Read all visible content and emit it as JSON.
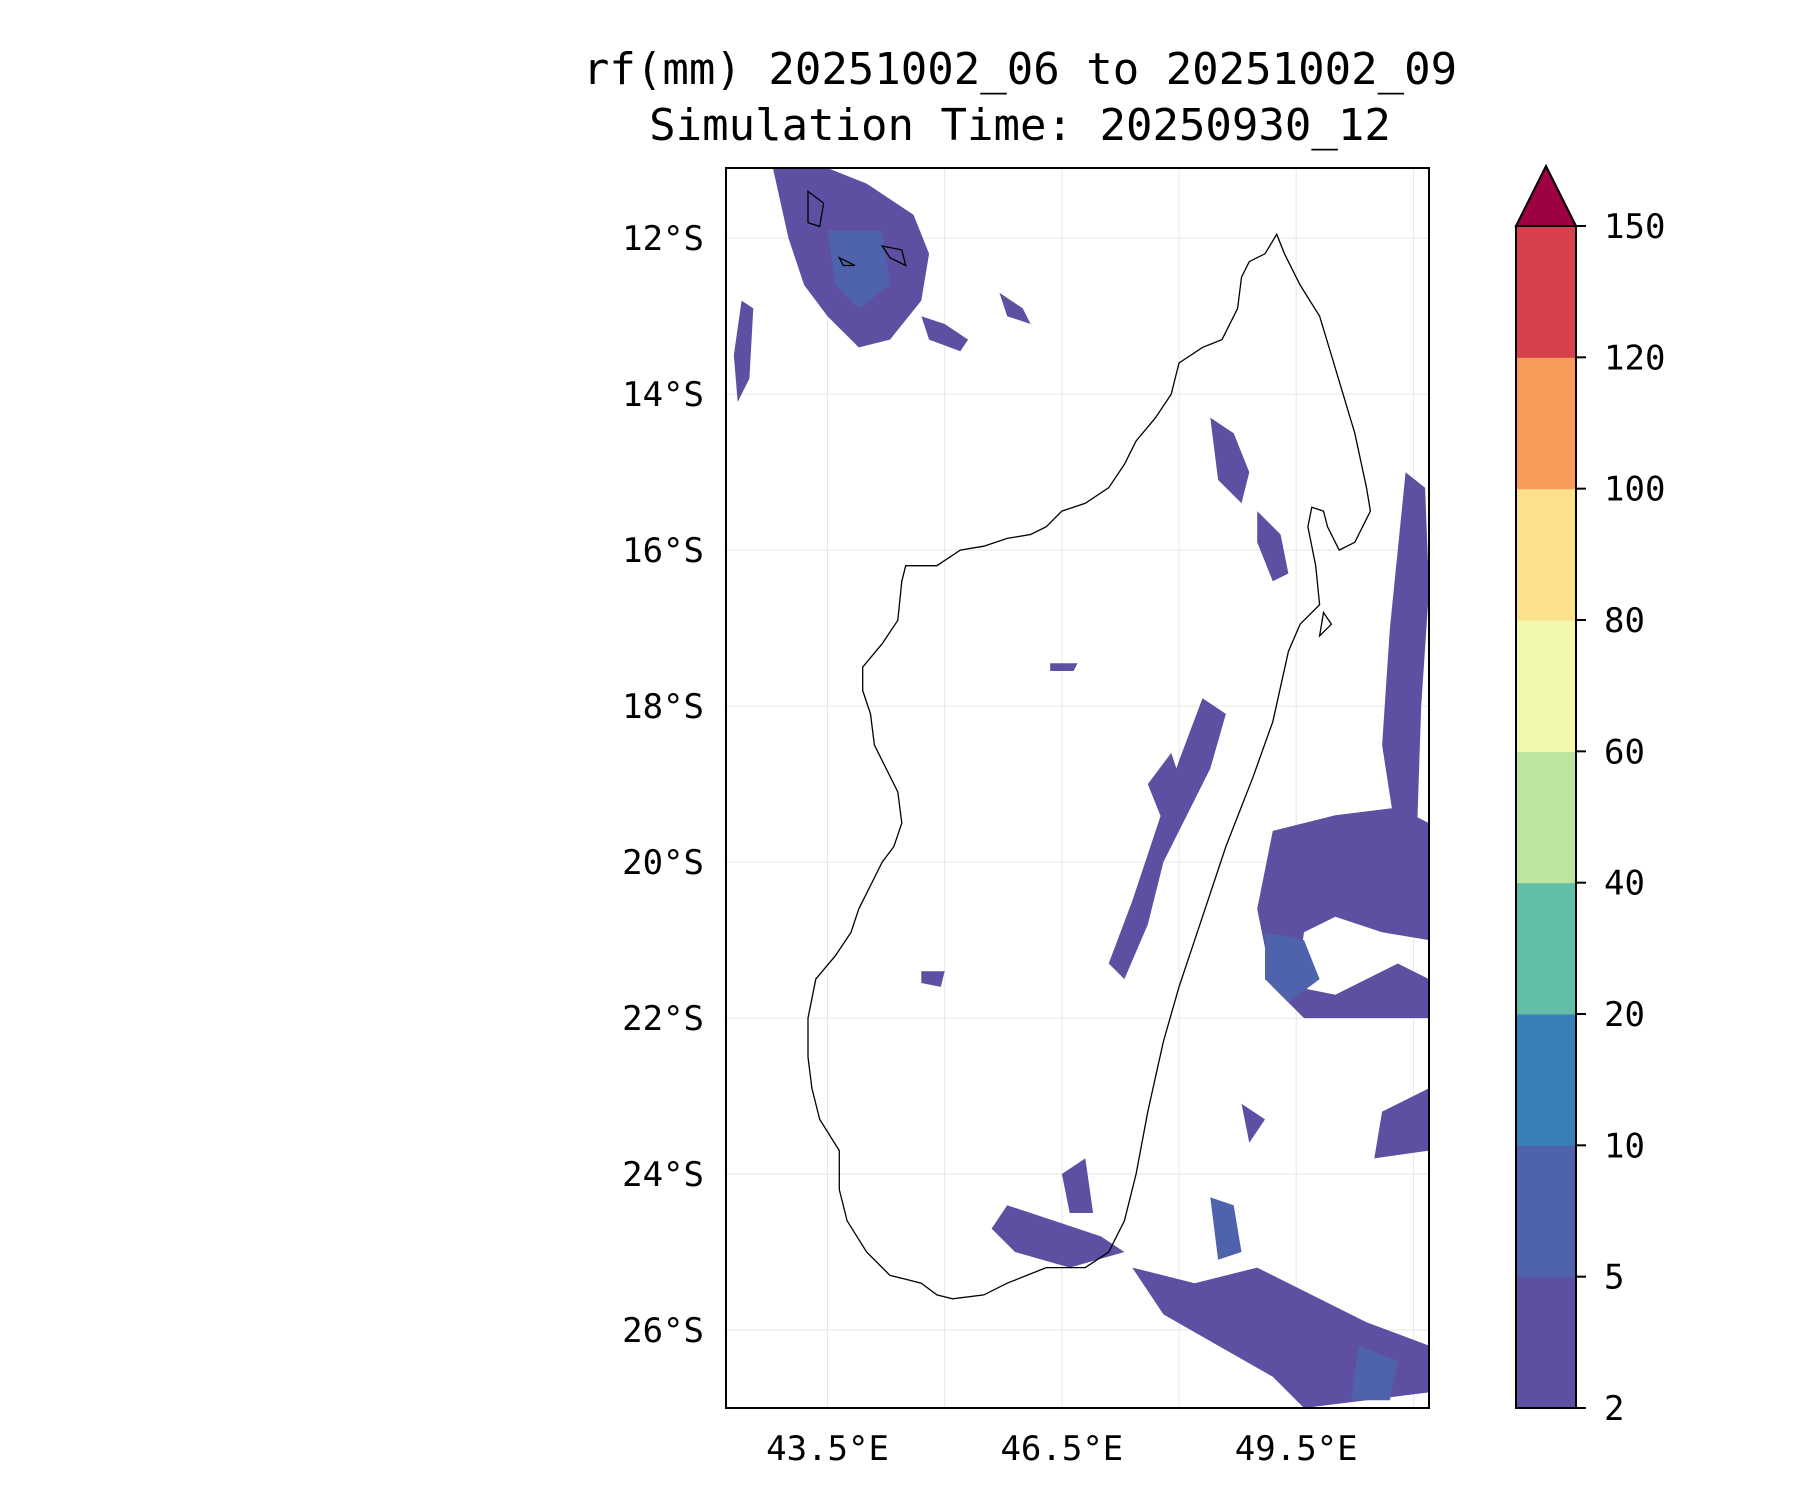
{
  "title": "rf(mm) 20251002_06 to 20251002_09",
  "subtitle": "Simulation Time: 20250930_12",
  "map": {
    "lon_range": [
      42.2,
      51.2
    ],
    "lat_range": [
      -27.0,
      -11.1
    ],
    "lat_ticks": [
      {
        "value": -12,
        "label": "12°S"
      },
      {
        "value": -14,
        "label": "14°S"
      },
      {
        "value": -16,
        "label": "16°S"
      },
      {
        "value": -18,
        "label": "18°S"
      },
      {
        "value": -20,
        "label": "20°S"
      },
      {
        "value": -22,
        "label": "22°S"
      },
      {
        "value": -24,
        "label": "24°S"
      },
      {
        "value": -26,
        "label": "26°S"
      }
    ],
    "lon_ticks": [
      {
        "value": 43.5,
        "label": "43.5°E"
      },
      {
        "value": 46.5,
        "label": "46.5°E"
      },
      {
        "value": 49.5,
        "label": "49.5°E"
      }
    ],
    "grid_lons": [
      43.5,
      45.0,
      46.5,
      48.0,
      49.5,
      51.0
    ],
    "grid": true,
    "coastline": [
      [
        49.25,
        -11.95
      ],
      [
        49.35,
        -12.2
      ],
      [
        49.55,
        -12.6
      ],
      [
        49.8,
        -13.0
      ],
      [
        49.95,
        -13.5
      ],
      [
        50.1,
        -14.0
      ],
      [
        50.25,
        -14.5
      ],
      [
        50.4,
        -15.2
      ],
      [
        50.45,
        -15.5
      ],
      [
        50.25,
        -15.9
      ],
      [
        50.05,
        -16.0
      ],
      [
        49.9,
        -15.7
      ],
      [
        49.85,
        -15.5
      ],
      [
        49.7,
        -15.45
      ],
      [
        49.65,
        -15.7
      ],
      [
        49.75,
        -16.2
      ],
      [
        49.8,
        -16.7
      ],
      [
        49.55,
        -16.95
      ],
      [
        49.4,
        -17.3
      ],
      [
        49.2,
        -18.2
      ],
      [
        48.95,
        -18.9
      ],
      [
        48.6,
        -19.8
      ],
      [
        48.3,
        -20.7
      ],
      [
        48.0,
        -21.6
      ],
      [
        47.8,
        -22.3
      ],
      [
        47.6,
        -23.2
      ],
      [
        47.45,
        -24.0
      ],
      [
        47.3,
        -24.6
      ],
      [
        47.1,
        -25.0
      ],
      [
        46.8,
        -25.2
      ],
      [
        46.3,
        -25.2
      ],
      [
        45.8,
        -25.4
      ],
      [
        45.5,
        -25.55
      ],
      [
        45.1,
        -25.6
      ],
      [
        44.9,
        -25.55
      ],
      [
        44.7,
        -25.4
      ],
      [
        44.5,
        -25.35
      ],
      [
        44.3,
        -25.3
      ],
      [
        44.0,
        -25.0
      ],
      [
        43.75,
        -24.6
      ],
      [
        43.65,
        -24.2
      ],
      [
        43.65,
        -23.7
      ],
      [
        43.4,
        -23.3
      ],
      [
        43.3,
        -22.9
      ],
      [
        43.25,
        -22.5
      ],
      [
        43.25,
        -22.0
      ],
      [
        43.35,
        -21.5
      ],
      [
        43.6,
        -21.2
      ],
      [
        43.8,
        -20.9
      ],
      [
        43.9,
        -20.6
      ],
      [
        44.05,
        -20.3
      ],
      [
        44.2,
        -20.0
      ],
      [
        44.35,
        -19.8
      ],
      [
        44.45,
        -19.5
      ],
      [
        44.4,
        -19.1
      ],
      [
        44.25,
        -18.8
      ],
      [
        44.1,
        -18.5
      ],
      [
        44.05,
        -18.1
      ],
      [
        43.95,
        -17.8
      ],
      [
        43.95,
        -17.5
      ],
      [
        44.2,
        -17.2
      ],
      [
        44.4,
        -16.9
      ],
      [
        44.45,
        -16.4
      ],
      [
        44.5,
        -16.2
      ],
      [
        44.9,
        -16.2
      ],
      [
        45.2,
        -16.0
      ],
      [
        45.5,
        -15.95
      ],
      [
        45.8,
        -15.85
      ],
      [
        46.1,
        -15.8
      ],
      [
        46.3,
        -15.7
      ],
      [
        46.5,
        -15.5
      ],
      [
        46.8,
        -15.4
      ],
      [
        47.1,
        -15.2
      ],
      [
        47.3,
        -14.9
      ],
      [
        47.45,
        -14.6
      ],
      [
        47.7,
        -14.3
      ],
      [
        47.9,
        -14.0
      ],
      [
        48.0,
        -13.6
      ],
      [
        48.3,
        -13.4
      ],
      [
        48.55,
        -13.3
      ],
      [
        48.75,
        -12.9
      ],
      [
        48.8,
        -12.5
      ],
      [
        48.9,
        -12.3
      ],
      [
        49.1,
        -12.2
      ],
      [
        49.25,
        -11.95
      ]
    ],
    "islands": [
      [
        [
          43.25,
          -11.4
        ],
        [
          43.45,
          -11.55
        ],
        [
          43.4,
          -11.85
        ],
        [
          43.25,
          -11.8
        ],
        [
          43.25,
          -11.4
        ]
      ],
      [
        [
          44.2,
          -12.1
        ],
        [
          44.45,
          -12.15
        ],
        [
          44.5,
          -12.35
        ],
        [
          44.3,
          -12.25
        ],
        [
          44.2,
          -12.1
        ]
      ],
      [
        [
          43.65,
          -12.25
        ],
        [
          43.85,
          -12.35
        ],
        [
          43.7,
          -12.35
        ],
        [
          43.65,
          -12.25
        ]
      ],
      [
        [
          49.85,
          -16.8
        ],
        [
          49.95,
          -16.95
        ],
        [
          49.8,
          -17.1
        ],
        [
          49.85,
          -16.8
        ]
      ]
    ],
    "rain_polygons": [
      {
        "level": 0,
        "points": [
          [
            42.8,
            -11.1
          ],
          [
            43.5,
            -11.1
          ],
          [
            44.0,
            -11.3
          ],
          [
            44.6,
            -11.7
          ],
          [
            44.8,
            -12.2
          ],
          [
            44.7,
            -12.8
          ],
          [
            44.3,
            -13.3
          ],
          [
            43.9,
            -13.4
          ],
          [
            43.5,
            -13.0
          ],
          [
            43.2,
            -12.6
          ],
          [
            43.0,
            -12.0
          ],
          [
            42.8,
            -11.1
          ]
        ]
      },
      {
        "level": 1,
        "points": [
          [
            43.5,
            -11.9
          ],
          [
            44.2,
            -11.9
          ],
          [
            44.3,
            -12.6
          ],
          [
            43.9,
            -12.9
          ],
          [
            43.6,
            -12.6
          ],
          [
            43.5,
            -11.9
          ]
        ]
      },
      {
        "level": 0,
        "points": [
          [
            42.4,
            -12.8
          ],
          [
            42.55,
            -12.9
          ],
          [
            42.5,
            -13.8
          ],
          [
            42.35,
            -14.1
          ],
          [
            42.3,
            -13.5
          ],
          [
            42.4,
            -12.8
          ]
        ]
      },
      {
        "level": 0,
        "points": [
          [
            44.7,
            -13.0
          ],
          [
            45.0,
            -13.1
          ],
          [
            45.3,
            -13.3
          ],
          [
            45.2,
            -13.45
          ],
          [
            44.8,
            -13.3
          ],
          [
            44.7,
            -13.0
          ]
        ]
      },
      {
        "level": 0,
        "points": [
          [
            45.7,
            -12.7
          ],
          [
            46.0,
            -12.9
          ],
          [
            46.1,
            -13.1
          ],
          [
            45.8,
            -13.0
          ],
          [
            45.7,
            -12.7
          ]
        ]
      },
      {
        "level": 0,
        "points": [
          [
            48.4,
            -14.3
          ],
          [
            48.7,
            -14.5
          ],
          [
            48.9,
            -15.0
          ],
          [
            48.8,
            -15.4
          ],
          [
            48.5,
            -15.1
          ],
          [
            48.4,
            -14.3
          ]
        ]
      },
      {
        "level": 0,
        "points": [
          [
            49.0,
            -15.5
          ],
          [
            49.3,
            -15.8
          ],
          [
            49.4,
            -16.3
          ],
          [
            49.2,
            -16.4
          ],
          [
            49.0,
            -15.9
          ],
          [
            49.0,
            -15.5
          ]
        ]
      },
      {
        "level": 0,
        "points": [
          [
            50.9,
            -15.0
          ],
          [
            51.15,
            -15.2
          ],
          [
            51.2,
            -16.5
          ],
          [
            51.1,
            -18.0
          ],
          [
            51.05,
            -19.5
          ],
          [
            50.8,
            -19.8
          ],
          [
            50.6,
            -18.5
          ],
          [
            50.7,
            -17.0
          ],
          [
            50.9,
            -15.0
          ]
        ]
      },
      {
        "level": 0,
        "points": [
          [
            48.3,
            -17.9
          ],
          [
            48.6,
            -18.1
          ],
          [
            48.4,
            -18.8
          ],
          [
            48.1,
            -19.4
          ],
          [
            47.8,
            -20.0
          ],
          [
            47.6,
            -20.8
          ],
          [
            47.3,
            -21.5
          ],
          [
            47.1,
            -21.3
          ],
          [
            47.4,
            -20.5
          ],
          [
            47.7,
            -19.6
          ],
          [
            48.0,
            -18.7
          ],
          [
            48.3,
            -17.9
          ]
        ]
      },
      {
        "level": 0,
        "points": [
          [
            49.2,
            -19.6
          ],
          [
            50.0,
            -19.4
          ],
          [
            50.8,
            -19.3
          ],
          [
            51.2,
            -19.5
          ],
          [
            51.2,
            -21.0
          ],
          [
            50.6,
            -20.9
          ],
          [
            50.0,
            -20.7
          ],
          [
            49.6,
            -20.9
          ],
          [
            49.5,
            -21.6
          ],
          [
            50.0,
            -21.7
          ],
          [
            50.8,
            -21.3
          ],
          [
            51.2,
            -21.5
          ],
          [
            51.2,
            -22.0
          ],
          [
            50.4,
            -22.0
          ],
          [
            49.6,
            -22.0
          ],
          [
            49.2,
            -21.6
          ],
          [
            49.0,
            -20.6
          ],
          [
            49.2,
            -19.6
          ]
        ]
      },
      {
        "level": 1,
        "points": [
          [
            49.1,
            -20.9
          ],
          [
            49.6,
            -21.0
          ],
          [
            49.8,
            -21.5
          ],
          [
            49.4,
            -21.8
          ],
          [
            49.1,
            -21.5
          ],
          [
            49.1,
            -20.9
          ]
        ]
      },
      {
        "level": 0,
        "points": [
          [
            50.6,
            -23.2
          ],
          [
            51.2,
            -22.9
          ],
          [
            51.2,
            -23.7
          ],
          [
            50.5,
            -23.8
          ],
          [
            50.6,
            -23.2
          ]
        ]
      },
      {
        "level": 0,
        "points": [
          [
            45.8,
            -24.4
          ],
          [
            46.4,
            -24.6
          ],
          [
            47.0,
            -24.8
          ],
          [
            47.3,
            -25.0
          ],
          [
            46.6,
            -25.2
          ],
          [
            45.9,
            -25.0
          ],
          [
            45.6,
            -24.7
          ],
          [
            45.8,
            -24.4
          ]
        ]
      },
      {
        "level": 0,
        "points": [
          [
            47.4,
            -25.2
          ],
          [
            48.2,
            -25.4
          ],
          [
            49.0,
            -25.2
          ],
          [
            49.6,
            -25.5
          ],
          [
            50.4,
            -25.9
          ],
          [
            51.2,
            -26.2
          ],
          [
            51.2,
            -26.8
          ],
          [
            50.4,
            -26.9
          ],
          [
            49.6,
            -27.0
          ],
          [
            49.2,
            -26.6
          ],
          [
            48.5,
            -26.2
          ],
          [
            47.8,
            -25.8
          ],
          [
            47.4,
            -25.2
          ]
        ]
      },
      {
        "level": 1,
        "points": [
          [
            48.4,
            -24.3
          ],
          [
            48.7,
            -24.4
          ],
          [
            48.8,
            -25.0
          ],
          [
            48.5,
            -25.1
          ],
          [
            48.4,
            -24.3
          ]
        ]
      },
      {
        "level": 1,
        "points": [
          [
            50.3,
            -26.2
          ],
          [
            50.8,
            -26.4
          ],
          [
            50.7,
            -26.9
          ],
          [
            50.2,
            -26.9
          ],
          [
            50.3,
            -26.2
          ]
        ]
      },
      {
        "level": 0,
        "points": [
          [
            47.6,
            -19.0
          ],
          [
            47.9,
            -18.6
          ],
          [
            48.1,
            -19.2
          ],
          [
            47.8,
            -19.5
          ],
          [
            47.6,
            -19.0
          ]
        ]
      },
      {
        "level": 0,
        "points": [
          [
            44.7,
            -21.4
          ],
          [
            45.0,
            -21.4
          ],
          [
            44.95,
            -21.6
          ],
          [
            44.7,
            -21.55
          ],
          [
            44.7,
            -21.4
          ]
        ]
      },
      {
        "level": 0,
        "points": [
          [
            46.35,
            -17.45
          ],
          [
            46.7,
            -17.45
          ],
          [
            46.65,
            -17.55
          ],
          [
            46.35,
            -17.55
          ],
          [
            46.35,
            -17.45
          ]
        ]
      },
      {
        "level": 0,
        "points": [
          [
            46.5,
            -24.0
          ],
          [
            46.8,
            -23.8
          ],
          [
            46.9,
            -24.5
          ],
          [
            46.6,
            -24.5
          ],
          [
            46.5,
            -24.0
          ]
        ]
      },
      {
        "level": 0,
        "points": [
          [
            48.8,
            -23.1
          ],
          [
            49.1,
            -23.3
          ],
          [
            48.9,
            -23.6
          ],
          [
            48.8,
            -23.1
          ]
        ]
      }
    ]
  },
  "colorbar": {
    "levels": [
      {
        "value": 2,
        "label": "2",
        "color": "#5e4fa2"
      },
      {
        "value": 5,
        "label": "5",
        "color": "#4e63ab"
      },
      {
        "value": 10,
        "label": "10",
        "color": "#3880b9"
      },
      {
        "value": 20,
        "label": "20",
        "color": "#62bea8"
      },
      {
        "value": 40,
        "label": "40",
        "color": "#bde4a0"
      },
      {
        "value": 60,
        "label": "60",
        "color": "#f2f9ad"
      },
      {
        "value": 80,
        "label": "80",
        "color": "#fde08b"
      },
      {
        "value": 100,
        "label": "100",
        "color": "#f99c5b"
      },
      {
        "value": 120,
        "label": "120",
        "color": "#d8404e"
      },
      {
        "value": 150,
        "label": "150",
        "color": "#9e0142"
      }
    ],
    "extend": "max",
    "extend_color": "#9e0142"
  }
}
